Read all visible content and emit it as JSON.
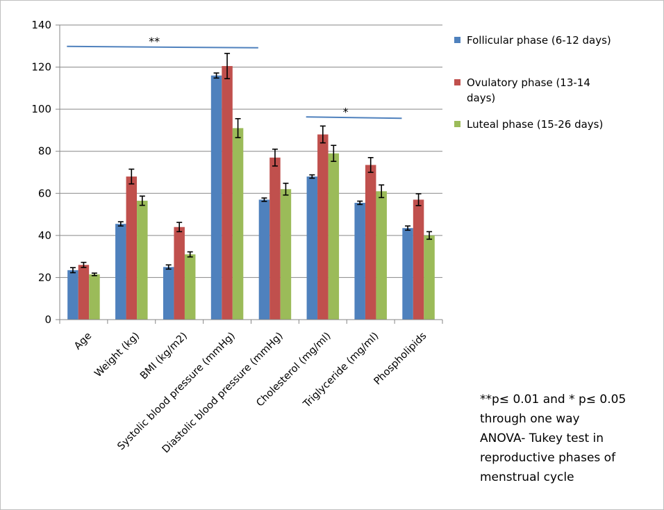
{
  "chart_data": {
    "type": "bar",
    "title": "",
    "xlabel": "",
    "ylabel": "",
    "ylim": [
      0,
      140
    ],
    "yticks": [
      0,
      20,
      40,
      60,
      80,
      100,
      120,
      140
    ],
    "grid": true,
    "legend_position": "right",
    "categories": [
      "Age",
      "Weight (kg)",
      "BMI (kg/m2)",
      "Systolic blood pressure (mmHg)",
      "Diastolic blood pressure (mmHg)",
      "Cholesterol (mg/ml)",
      "Triglyceride (mg/ml)",
      "Phospholipids"
    ],
    "series": [
      {
        "name": "Follicular phase (6-12 days)",
        "color": "#4f81bd",
        "values": [
          23.5,
          45.5,
          25,
          116,
          57,
          68,
          55.5,
          43.5
        ],
        "errors": [
          1.2,
          1.0,
          1.0,
          1.2,
          0.8,
          0.8,
          0.8,
          1.0
        ]
      },
      {
        "name": "Ovulatory phase (13-14 days)",
        "color": "#c0504d",
        "values": [
          26,
          68,
          44,
          120.5,
          77,
          88,
          73.5,
          57
        ],
        "errors": [
          1.2,
          3.5,
          2.2,
          6.0,
          4.0,
          4.0,
          3.5,
          2.8
        ]
      },
      {
        "name": "Luteal phase (15-26 days)",
        "color": "#9bbb59",
        "values": [
          21.5,
          56.5,
          31,
          91,
          62,
          79,
          61,
          40
        ],
        "errors": [
          0.6,
          2.2,
          1.2,
          4.5,
          2.8,
          3.8,
          3.0,
          1.8
        ]
      }
    ],
    "annotations": [
      {
        "label": "**",
        "from_category": 0,
        "to_category": 3,
        "y": 129.5
      },
      {
        "label": "*",
        "from_category": 5,
        "to_category": 6,
        "y": 96
      }
    ]
  },
  "legend_lines": [
    [
      "Follicular phase (6-12 days)"
    ],
    [
      "Ovulatory phase (13-14",
      "days)"
    ],
    [
      "Luteal phase (15-26 days)"
    ]
  ],
  "note_lines": [
    "**p≤ 0.01 and * p≤ 0.05",
    "through one way",
    "ANOVA- Tukey test  in",
    "reproductive phases of",
    "menstrual cycle"
  ],
  "colors": {
    "gridline": "#868686",
    "axis": "#868686",
    "sig_line": "#4f81bd",
    "error_bar": "#000000"
  }
}
